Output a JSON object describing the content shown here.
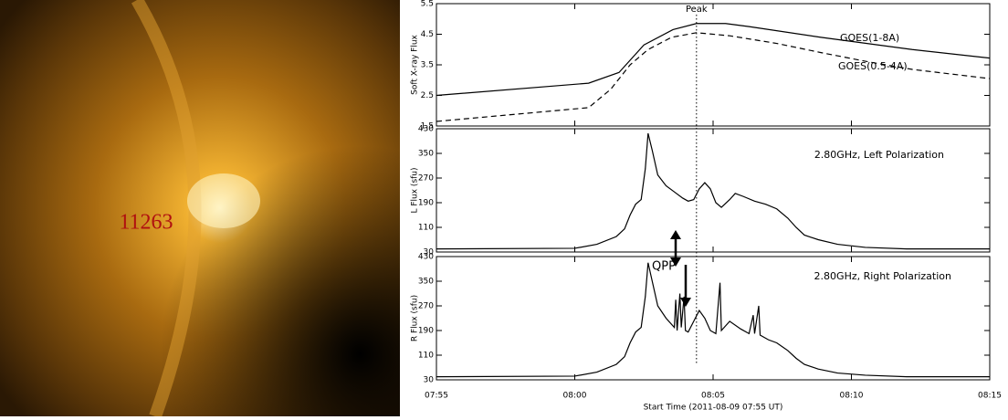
{
  "image": {
    "label": "11263"
  },
  "chart_data": [
    {
      "type": "line",
      "ylabel": "Soft X-ray Flux",
      "xlim": [
        0,
        20
      ],
      "ylim": [
        1.5,
        5.5
      ],
      "yticks": [
        1.5,
        2.5,
        3.5,
        4.5,
        5.5
      ],
      "annotations": [
        {
          "text": "Peak",
          "x": 9.4
        }
      ],
      "series": [
        {
          "name": "GOES(1-8A)",
          "color": "#000000",
          "linestyle": "solid",
          "x": [
            0,
            5.5,
            6.6,
            7.5,
            8.55,
            9.4,
            10.45,
            11.3,
            13.9,
            17.2,
            20
          ],
          "values": [
            2.5,
            2.9,
            3.25,
            4.15,
            4.65,
            4.85,
            4.85,
            4.75,
            4.4,
            4.0,
            3.72
          ]
        },
        {
          "name": "GOES(0.5-4A)",
          "color": "#000000",
          "linestyle": "dashed",
          "x": [
            0,
            5.5,
            6.3,
            7,
            7.65,
            8.5,
            9.4,
            10.6,
            12.3,
            13.9,
            15.6,
            17.2,
            20
          ],
          "values": [
            1.65,
            2.1,
            2.7,
            3.5,
            4.0,
            4.4,
            4.55,
            4.45,
            4.2,
            3.9,
            3.6,
            3.35,
            3.05
          ]
        }
      ]
    },
    {
      "type": "line",
      "ylabel": "L Flux (sfu)",
      "xlim": [
        0,
        20
      ],
      "ylim": [
        30,
        430
      ],
      "yticks": [
        30,
        110,
        190,
        270,
        350,
        430
      ],
      "series": [
        {
          "name": "2.80GHz, Left Polarization",
          "color": "#000000",
          "linestyle": "solid",
          "x": [
            0,
            5,
            5.8,
            6.5,
            6.8,
            7.0,
            7.2,
            7.4,
            7.55,
            7.65,
            7.8,
            8.0,
            8.3,
            8.6,
            8.9,
            9.1,
            9.3,
            9.5,
            9.7,
            9.9,
            10.1,
            10.3,
            10.6,
            10.8,
            11.1,
            11.5,
            11.9,
            12.3,
            12.7,
            13.0,
            13.3,
            13.8,
            14.5,
            15.5,
            17,
            20
          ],
          "values": [
            40,
            42,
            55,
            80,
            105,
            150,
            185,
            200,
            300,
            415,
            360,
            280,
            245,
            225,
            205,
            195,
            200,
            235,
            255,
            235,
            190,
            175,
            200,
            220,
            210,
            195,
            185,
            170,
            140,
            110,
            85,
            70,
            55,
            45,
            40,
            40
          ]
        }
      ]
    },
    {
      "type": "line",
      "ylabel": "R Flux (sfu)",
      "xlabel": "Start Time (2011-08-09 07:55 UT)",
      "xlim": [
        0,
        20
      ],
      "ylim": [
        30,
        430
      ],
      "yticks": [
        30,
        110,
        190,
        270,
        350,
        430
      ],
      "xticks": [
        {
          "value": 0,
          "label": "07:55"
        },
        {
          "value": 5,
          "label": "08:00"
        },
        {
          "value": 10,
          "label": "08:05"
        },
        {
          "value": 15,
          "label": "08:10"
        },
        {
          "value": 20,
          "label": "08:15"
        }
      ],
      "annotation": "QPP",
      "series": [
        {
          "name": "2.80GHz, Right Polarization",
          "color": "#000000",
          "linestyle": "solid",
          "x": [
            0,
            5,
            5.8,
            6.5,
            6.8,
            7.0,
            7.2,
            7.4,
            7.55,
            7.65,
            7.8,
            8.0,
            8.3,
            8.6,
            8.65,
            8.7,
            8.8,
            8.85,
            8.95,
            9.0,
            9.1,
            9.3,
            9.5,
            9.7,
            9.9,
            10.1,
            10.25,
            10.3,
            10.6,
            11.0,
            11.3,
            11.45,
            11.5,
            11.65,
            11.7,
            12.0,
            12.3,
            12.7,
            13.0,
            13.3,
            13.8,
            14.5,
            15.5,
            17,
            20
          ],
          "values": [
            40,
            42,
            55,
            80,
            105,
            150,
            185,
            200,
            300,
            410,
            350,
            270,
            230,
            200,
            290,
            190,
            310,
            200,
            300,
            190,
            185,
            220,
            255,
            230,
            190,
            180,
            345,
            190,
            220,
            195,
            180,
            240,
            180,
            270,
            175,
            160,
            150,
            125,
            100,
            80,
            65,
            52,
            45,
            40,
            40
          ]
        }
      ]
    }
  ]
}
